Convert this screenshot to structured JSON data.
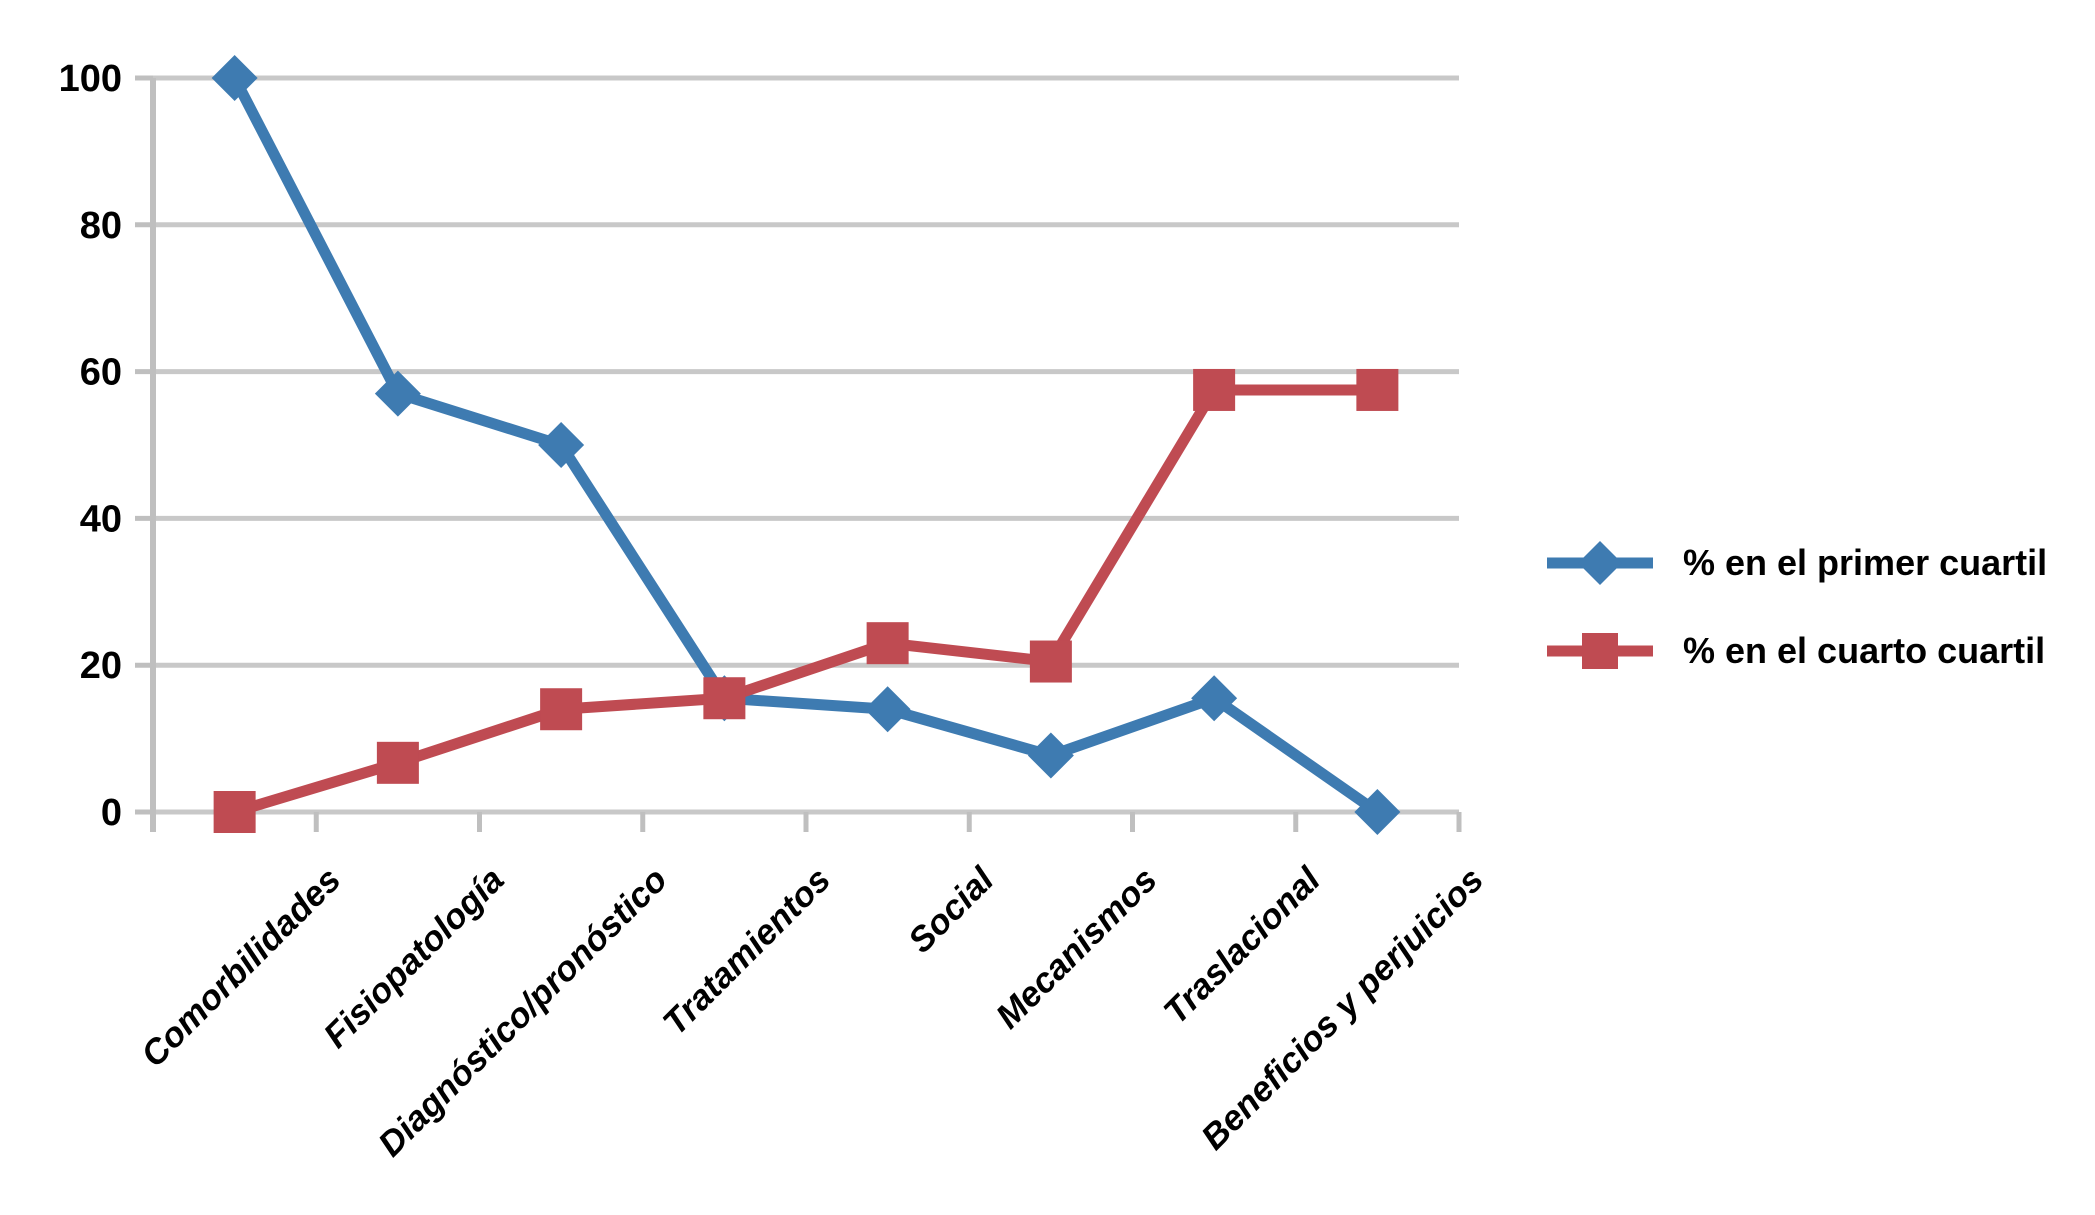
{
  "chart_data": {
    "type": "line",
    "title": "",
    "xlabel": "",
    "ylabel": "",
    "categories": [
      "Comorbilidades",
      "Fisiopatología",
      "Diagnóstico/pronóstico",
      "Tratamientos",
      "Social",
      "Mecanismos",
      "Traslacional",
      "Beneficios y perjuicios"
    ],
    "series": [
      {
        "name": "% en el primer cuartil",
        "marker": "diamond",
        "color": "#3E7BB1",
        "values": [
          100,
          57,
          50,
          15.5,
          14,
          7.7,
          15.5,
          0
        ]
      },
      {
        "name": "% en el cuarto cuartil",
        "marker": "square",
        "color": "#BF4B52",
        "values": [
          0,
          6.7,
          14,
          15.5,
          23,
          20.5,
          57.5,
          57.5
        ]
      }
    ],
    "ylim": [
      0,
      100
    ],
    "yticks": [
      0,
      20,
      40,
      60,
      80,
      100
    ],
    "grid": "horizontal",
    "legend_position": "right-middle",
    "colors": {
      "gridline": "#C8C8C8",
      "axis": "#BFBFBF",
      "text": "#000000",
      "background": "#FFFFFF"
    }
  }
}
